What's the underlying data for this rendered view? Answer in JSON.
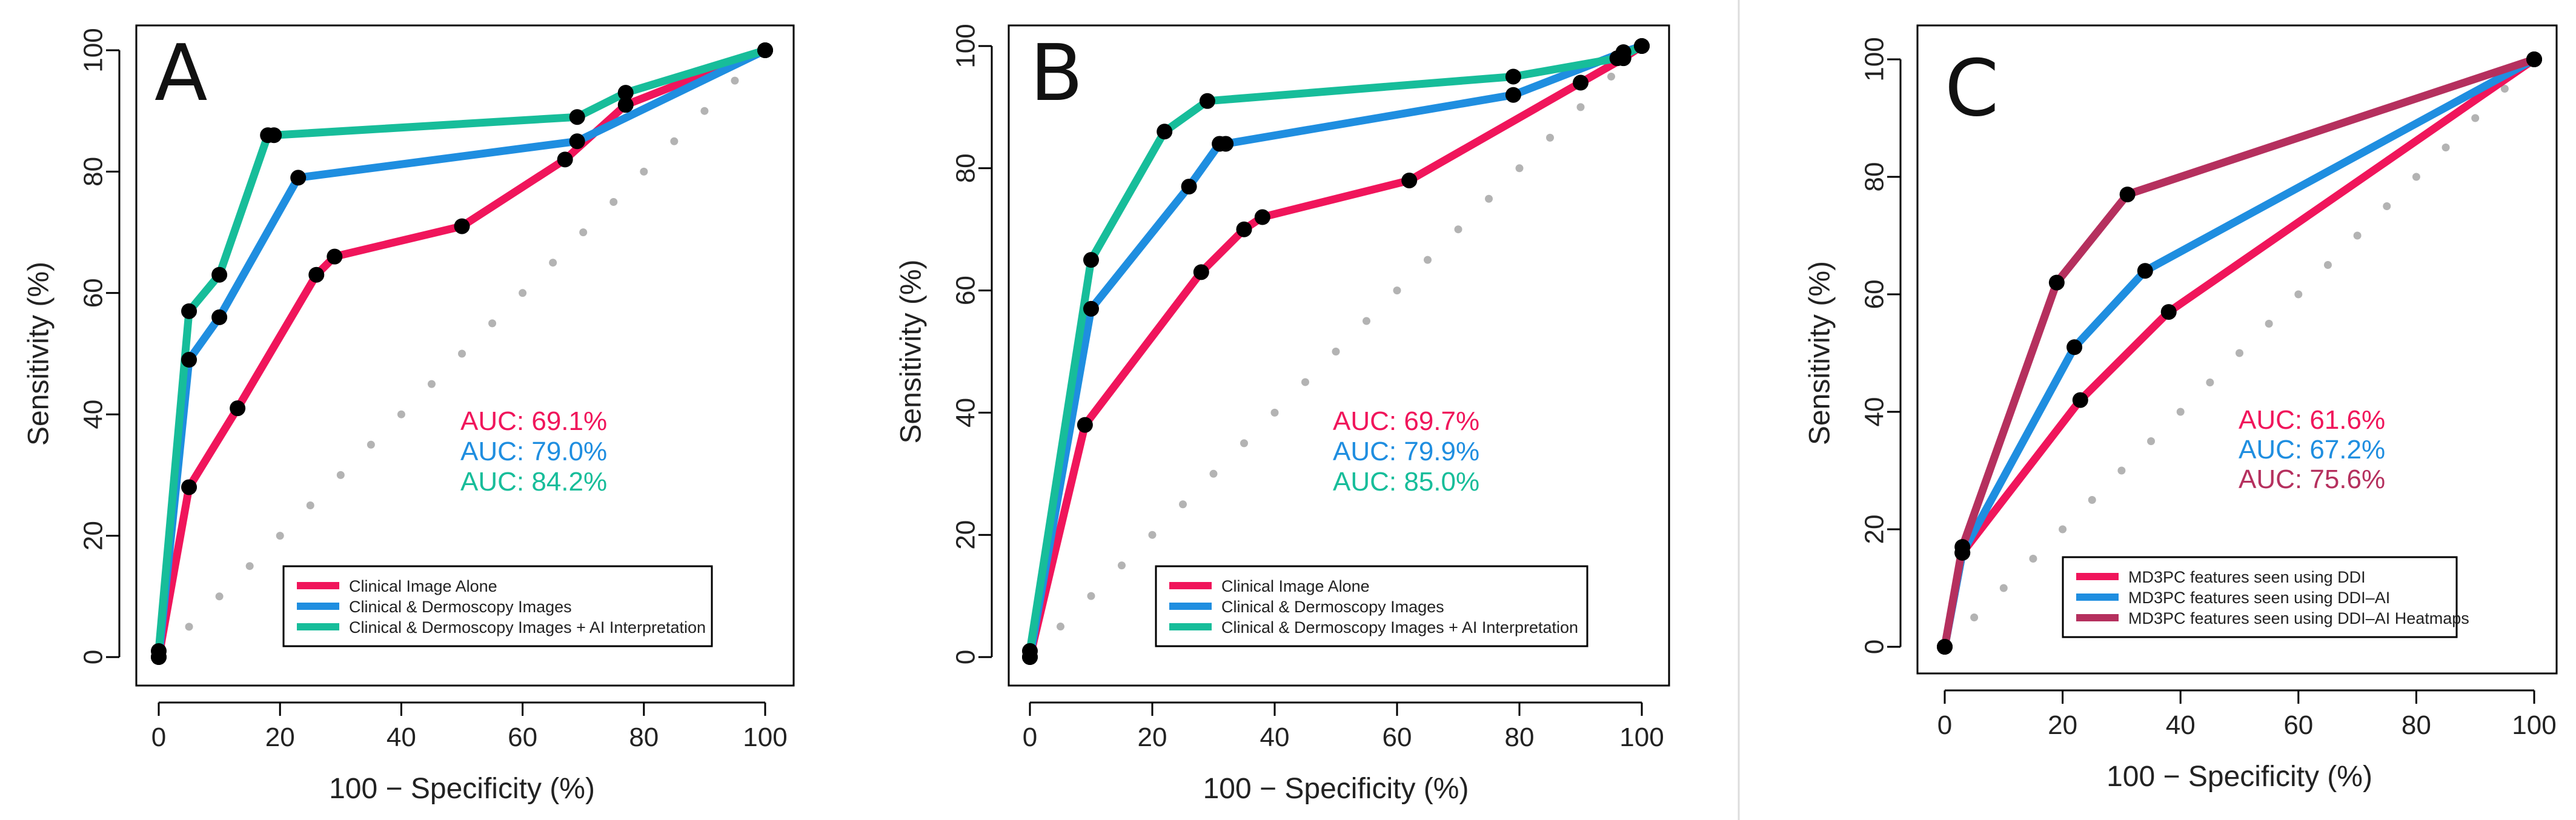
{
  "colors": {
    "red": "#f0155b",
    "blue": "#1f8ee0",
    "teal": "#17bd9a",
    "magenta": "#b5305e",
    "point": "#000000",
    "diagonal": "#b3b3b3",
    "panel_rule": "#dddddd"
  },
  "chart_data": [
    {
      "type": "line",
      "panel": "A",
      "xlabel": "100 − Specificity (%)",
      "ylabel": "Sensitivity (%)",
      "xlim": [
        0,
        100
      ],
      "ylim": [
        0,
        100
      ],
      "x_ticks": [
        0,
        20,
        40,
        60,
        80,
        100
      ],
      "y_ticks": [
        0,
        20,
        40,
        60,
        80,
        100
      ],
      "diagonal": true,
      "legend_position": "bottom-right",
      "series": [
        {
          "name": "Clinical Image Alone",
          "color": "#f0155b",
          "auc_label": "AUC: 69.1%",
          "x": [
            0,
            5,
            13,
            26,
            29,
            50,
            67,
            77,
            100
          ],
          "y": [
            0,
            28,
            41,
            63,
            66,
            71,
            82,
            91,
            100
          ]
        },
        {
          "name": "Clinical & Dermoscopy Images",
          "color": "#1f8ee0",
          "auc_label": "AUC: 79.0%",
          "x": [
            0,
            5,
            10,
            23,
            69,
            100
          ],
          "y": [
            0,
            49,
            56,
            79,
            85,
            100
          ]
        },
        {
          "name": "Clinical & Dermoscopy Images + AI Interpretation",
          "color": "#17bd9a",
          "auc_label": "AUC: 84.2%",
          "x": [
            0,
            5,
            10,
            18,
            19,
            69,
            77,
            100
          ],
          "y": [
            1,
            57,
            63,
            86,
            86,
            89,
            93,
            100
          ]
        }
      ]
    },
    {
      "type": "line",
      "panel": "B",
      "xlabel": "100 − Specificity (%)",
      "ylabel": "Sensitivity (%)",
      "xlim": [
        0,
        100
      ],
      "ylim": [
        0,
        100
      ],
      "x_ticks": [
        0,
        20,
        40,
        60,
        80,
        100
      ],
      "y_ticks": [
        0,
        20,
        40,
        60,
        80,
        100
      ],
      "diagonal": true,
      "legend_position": "bottom-right",
      "series": [
        {
          "name": "Clinical Image Alone",
          "color": "#f0155b",
          "auc_label": "AUC: 69.7%",
          "x": [
            0,
            9,
            28,
            35,
            38,
            62,
            90,
            97,
            100
          ],
          "y": [
            0,
            38,
            63,
            70,
            72,
            78,
            94,
            98,
            100
          ]
        },
        {
          "name": "Clinical & Dermoscopy Images",
          "color": "#1f8ee0",
          "auc_label": "AUC: 79.9%",
          "x": [
            0,
            10,
            26,
            31,
            32,
            79,
            97,
            100
          ],
          "y": [
            0,
            57,
            77,
            84,
            84,
            92,
            99,
            100
          ]
        },
        {
          "name": "Clinical & Dermoscopy Images + AI Interpretation",
          "color": "#17bd9a",
          "auc_label": "AUC: 85.0%",
          "x": [
            0,
            10,
            22,
            29,
            79,
            96,
            100
          ],
          "y": [
            1,
            65,
            86,
            91,
            95,
            98,
            100
          ]
        }
      ]
    },
    {
      "type": "line",
      "panel": "C",
      "xlabel": "100 − Specificity (%)",
      "ylabel": "Sensitivity (%)",
      "xlim": [
        0,
        100
      ],
      "ylim": [
        0,
        100
      ],
      "x_ticks": [
        0,
        20,
        40,
        60,
        80,
        100
      ],
      "y_ticks": [
        0,
        20,
        40,
        60,
        80,
        100
      ],
      "diagonal": true,
      "legend_position": "bottom-right",
      "series": [
        {
          "name": "MD3PC features seen using DDI",
          "color": "#f0155b",
          "auc_label": "AUC: 61.6%",
          "x": [
            0,
            3,
            23,
            38,
            100
          ],
          "y": [
            0,
            16,
            42,
            57,
            100
          ]
        },
        {
          "name": "MD3PC features seen using DDI–AI",
          "color": "#1f8ee0",
          "auc_label": "AUC: 67.2%",
          "x": [
            0,
            3,
            22,
            34,
            100
          ],
          "y": [
            0,
            16,
            51,
            64,
            100
          ]
        },
        {
          "name": "MD3PC features seen using DDI–AI Heatmaps",
          "color": "#b5305e",
          "auc_label": "AUC: 75.6%",
          "x": [
            0,
            3,
            19,
            31,
            100
          ],
          "y": [
            0,
            17,
            62,
            77,
            100
          ]
        }
      ]
    }
  ]
}
